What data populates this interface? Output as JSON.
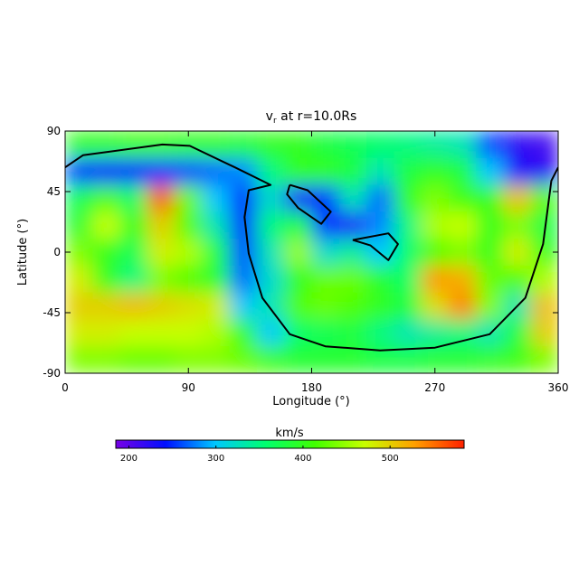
{
  "chart_data": {
    "type": "heatmap",
    "title": {
      "text": "v",
      "sub": "r",
      "rest": " at r=10.0Rs"
    },
    "x_label": "Longitude (°)",
    "y_label": "Latitude (°)",
    "xlim": [
      0,
      360
    ],
    "ylim": [
      -90,
      90
    ],
    "xticks": [
      0,
      90,
      180,
      270,
      360
    ],
    "yticks": [
      -90,
      -45,
      0,
      45,
      90
    ],
    "x": [
      10,
      30,
      50,
      70,
      90,
      110,
      130,
      150,
      170,
      190,
      210,
      230,
      250,
      270,
      290,
      310,
      330,
      350
    ],
    "y": [
      80,
      60,
      40,
      20,
      0,
      -20,
      -40,
      -60,
      -80
    ],
    "values": [
      [
        400,
        400,
        410,
        410,
        400,
        400,
        390,
        400,
        400,
        380,
        370,
        360,
        350,
        340,
        330,
        260,
        220,
        210
      ],
      [
        250,
        240,
        240,
        250,
        260,
        270,
        280,
        350,
        400,
        400,
        380,
        330,
        380,
        400,
        380,
        300,
        230,
        220
      ],
      [
        370,
        420,
        360,
        560,
        430,
        300,
        250,
        320,
        230,
        250,
        330,
        270,
        400,
        440,
        410,
        400,
        510,
        420
      ],
      [
        390,
        470,
        400,
        500,
        420,
        330,
        250,
        350,
        380,
        250,
        230,
        280,
        350,
        460,
        470,
        400,
        440,
        380
      ],
      [
        440,
        400,
        370,
        480,
        460,
        380,
        260,
        330,
        450,
        320,
        340,
        300,
        360,
        420,
        440,
        400,
        480,
        400
      ],
      [
        480,
        400,
        350,
        440,
        420,
        390,
        270,
        320,
        400,
        430,
        430,
        390,
        360,
        530,
        520,
        430,
        420,
        460
      ],
      [
        500,
        500,
        510,
        500,
        490,
        480,
        300,
        330,
        420,
        430,
        420,
        400,
        380,
        490,
        540,
        440,
        330,
        510
      ],
      [
        480,
        480,
        470,
        470,
        470,
        460,
        400,
        300,
        360,
        370,
        380,
        350,
        330,
        340,
        350,
        330,
        380,
        500
      ],
      [
        440,
        440,
        430,
        430,
        440,
        440,
        430,
        410,
        390,
        390,
        390,
        380,
        380,
        390,
        390,
        400,
        410,
        440
      ]
    ],
    "colormap": [
      "#7800e6",
      "#0010ff",
      "#00c8ff",
      "#00ff70",
      "#40ff00",
      "#c8ff00",
      "#ffa000",
      "#ff2000"
    ],
    "colorbar": {
      "label": "km/s",
      "clim": [
        185,
        585
      ],
      "ticks": [
        200,
        300,
        400,
        500
      ]
    },
    "contours": [
      {
        "lon": [
          0,
          13,
          71,
          91,
          124,
          144,
          150,
          134,
          131,
          134,
          144,
          164,
          190,
          230,
          270,
          310,
          336,
          349,
          355,
          360
        ],
        "lat": [
          63,
          72,
          80,
          79,
          63,
          53,
          50,
          46,
          26,
          -1,
          -34,
          -61,
          -70,
          -73,
          -71,
          -61,
          -34,
          6,
          53,
          63
        ]
      },
      {
        "lon": [
          164,
          177,
          194,
          187,
          170,
          162,
          164
        ],
        "lat": [
          50,
          46,
          30,
          21,
          33,
          43,
          50
        ]
      },
      {
        "lon": [
          210,
          236,
          243,
          236,
          223,
          210
        ],
        "lat": [
          9,
          14,
          6,
          -6,
          5,
          9
        ]
      }
    ]
  }
}
